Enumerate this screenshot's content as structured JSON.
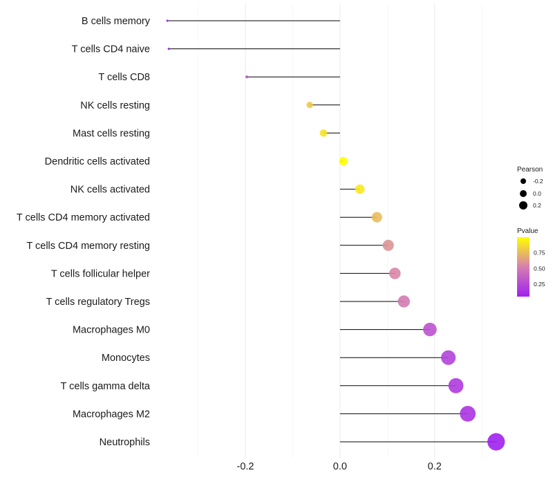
{
  "chart_data": {
    "type": "lollipop",
    "categories": [
      "B cells memory",
      "T cells CD4 naive",
      "T cells CD8",
      "NK cells resting",
      "Mast cells resting",
      "Dendritic cells activated",
      "NK cells activated",
      "T cells CD4 memory activated",
      "T cells CD4 memory resting",
      "T cells follicular helper",
      "T cells regulatory  Tregs ",
      "Macrophages M0",
      "Monocytes",
      "T cells gamma delta",
      "Macrophages M2",
      "Neutrophils"
    ],
    "values": [
      -0.365,
      -0.362,
      -0.197,
      -0.064,
      -0.035,
      0.007,
      0.042,
      0.078,
      0.102,
      0.116,
      0.135,
      0.19,
      0.229,
      0.245,
      0.27,
      0.33
    ],
    "pvalues": [
      0.05,
      0.05,
      0.3,
      0.8,
      0.9,
      1.0,
      0.92,
      0.75,
      0.6,
      0.55,
      0.5,
      0.3,
      0.22,
      0.18,
      0.15,
      0.05
    ],
    "xticks": [
      -0.2,
      0.0,
      0.2
    ],
    "xtick_labels": [
      "-0.2",
      "0.0",
      "0.2"
    ],
    "xlim": [
      -0.39,
      0.345
    ],
    "xlabel": "",
    "ylabel": "",
    "legend": {
      "position": "right",
      "size_title": "Pearson",
      "size_labels": [
        "-0.2",
        "0.0",
        "0.2"
      ],
      "size_values": [
        -0.2,
        0.0,
        0.2
      ],
      "color_title": "Pvalue",
      "color_labels": [
        "0.75",
        "0.50",
        "0.25"
      ],
      "color_values": [
        0.75,
        0.5,
        0.25
      ],
      "color_range": [
        0.05,
        1.0
      ],
      "color_low": "#a020f0",
      "color_high": "#ffff00"
    },
    "segment_color": "#000000",
    "grid": true
  }
}
